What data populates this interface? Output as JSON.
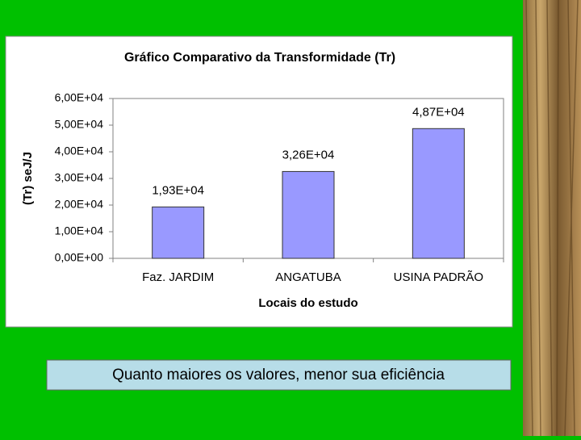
{
  "chart_data": {
    "type": "bar",
    "title": "Gráfico Comparativo da Transformidade (Tr)",
    "x_label": "Locais do estudo",
    "y_label": "(Tr) seJ/J",
    "categories": [
      "Faz. JARDIM",
      "ANGATUBA",
      "USINA PADRÃO"
    ],
    "values": [
      19300,
      32600,
      48700
    ],
    "value_labels": [
      "1,93E+04",
      "3,26E+04",
      "4,87E+04"
    ],
    "color": "#9999ff",
    "ylim": [
      0,
      60000
    ],
    "yticks": [
      {
        "value": 0,
        "label": "0,00E+00"
      },
      {
        "value": 10000,
        "label": "1,00E+04"
      },
      {
        "value": 20000,
        "label": "2,00E+04"
      },
      {
        "value": 30000,
        "label": "3,00E+04"
      },
      {
        "value": 40000,
        "label": "4,00E+04"
      },
      {
        "value": 50000,
        "label": "5,00E+04"
      },
      {
        "value": 60000,
        "label": "6,00E+04"
      }
    ],
    "grid": false
  },
  "caption": "Quanto maiores os valores, menor sua eficiência"
}
